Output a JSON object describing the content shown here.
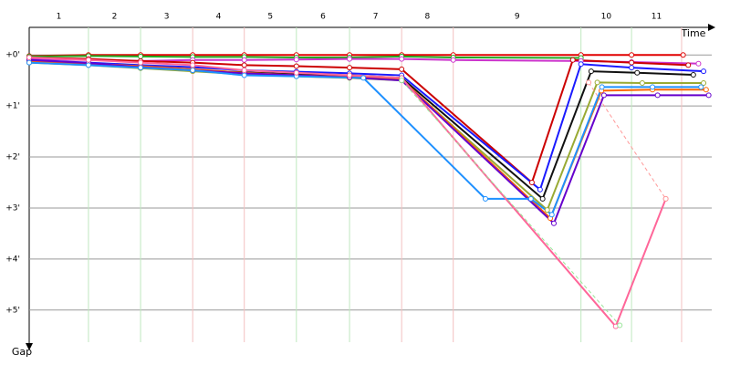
{
  "chart_data": {
    "type": "line",
    "x_label": "Time",
    "y_label": "Gap",
    "laps": [
      "1",
      "2",
      "3",
      "4",
      "5",
      "6",
      "7",
      "8",
      "9",
      "10",
      "11"
    ],
    "lap_ends": [
      1.16,
      2.18,
      3.2,
      4.21,
      5.23,
      6.27,
      7.29,
      8.3,
      10.8,
      11.79,
      12.77
    ],
    "xlim": [
      0,
      13.36
    ],
    "ylim": [
      -0.54,
      5.63
    ],
    "yticks": [
      {
        "value": 0,
        "label": "+0'"
      },
      {
        "value": 1,
        "label": "+1'"
      },
      {
        "value": 2,
        "label": "+2'"
      },
      {
        "value": 3,
        "label": "+3'"
      },
      {
        "value": 4,
        "label": "+4'"
      },
      {
        "value": 5,
        "label": "+5'"
      }
    ],
    "grid": true,
    "series": [
      {
        "color": "#e00000",
        "x": [
          0,
          1.16,
          2.18,
          3.2,
          4.21,
          5.23,
          6.27,
          7.29,
          8.3,
          10.8,
          11.79,
          12.8
        ],
        "values": [
          0.02,
          0,
          0,
          0,
          0,
          0,
          0,
          0,
          0,
          0,
          0,
          0
        ]
      },
      {
        "color": "#22aa22",
        "x": [
          0,
          1.16,
          2.18,
          3.2,
          4.21,
          5.23,
          6.27,
          7.29,
          8.3,
          10.8
        ],
        "values": [
          0.03,
          0.02,
          0.03,
          0.04,
          0.04,
          0.05,
          0.05,
          0.03,
          0.05,
          0.06
        ]
      },
      {
        "color": "#cc33cc",
        "x": [
          0,
          1.16,
          2.18,
          3.2,
          4.21,
          5.23,
          6.27,
          7.29,
          8.3,
          10.8,
          11.79,
          13.1
        ],
        "values": [
          0.08,
          0.1,
          0.12,
          0.1,
          0.1,
          0.09,
          0.08,
          0.08,
          0.1,
          0.12,
          0.14,
          0.17
        ]
      },
      {
        "color": "#cc0000",
        "x": [
          0,
          1.16,
          2.18,
          3.2,
          4.21,
          5.23,
          6.27,
          7.29,
          9.84,
          10.64,
          11.79,
          12.9
        ],
        "values": [
          0.05,
          0.08,
          0.12,
          0.15,
          0.2,
          0.22,
          0.25,
          0.28,
          2.5,
          0.1,
          0.15,
          0.2
        ]
      },
      {
        "color": "#1a1aff",
        "x": [
          0,
          1.16,
          2.18,
          3.2,
          4.21,
          5.23,
          6.27,
          7.29,
          10.0,
          10.8,
          11.79,
          13.2
        ],
        "values": [
          0.1,
          0.15,
          0.2,
          0.24,
          0.3,
          0.33,
          0.36,
          0.4,
          2.64,
          0.18,
          0.25,
          0.32
        ]
      },
      {
        "color": "#111111",
        "x": [
          0,
          1.16,
          2.18,
          3.2,
          4.21,
          5.23,
          6.27,
          7.29,
          10.05,
          11.0,
          11.9,
          13.0
        ],
        "values": [
          0.12,
          0.18,
          0.23,
          0.3,
          0.34,
          0.38,
          0.4,
          0.45,
          2.82,
          0.32,
          0.35,
          0.39
        ]
      },
      {
        "color": "#99aa33",
        "x": [
          0,
          1.16,
          2.18,
          3.2,
          4.21,
          5.23,
          6.27,
          7.29,
          10.14,
          11.12,
          12.0,
          13.2
        ],
        "values": [
          0.15,
          0.2,
          0.26,
          0.32,
          0.38,
          0.42,
          0.45,
          0.5,
          3.04,
          0.54,
          0.55,
          0.55
        ]
      },
      {
        "color": "#ff6600",
        "x": [
          0,
          1.16,
          2.18,
          3.2,
          4.21,
          5.23,
          6.27,
          7.29,
          10.2,
          11.2,
          12.2,
          13.25
        ],
        "values": [
          0.13,
          0.17,
          0.22,
          0.28,
          0.35,
          0.4,
          0.43,
          0.48,
          3.2,
          0.7,
          0.68,
          0.68
        ]
      },
      {
        "color": "#6600cc",
        "x": [
          0,
          1.16,
          2.18,
          3.2,
          4.21,
          5.23,
          6.27,
          7.29,
          10.27,
          11.25,
          12.3,
          13.3
        ],
        "values": [
          0.1,
          0.16,
          0.24,
          0.3,
          0.36,
          0.4,
          0.44,
          0.5,
          3.3,
          0.79,
          0.79,
          0.79
        ]
      },
      {
        "color": "#1e90ff",
        "x": [
          0,
          1.16,
          2.18,
          3.2,
          4.21,
          5.23,
          6.54,
          8.93,
          9.82,
          10.23,
          11.21,
          12.2,
          13.15
        ],
        "values": [
          0.15,
          0.2,
          0.25,
          0.3,
          0.4,
          0.42,
          0.45,
          2.82,
          2.82,
          3.13,
          0.63,
          0.63,
          0.63
        ]
      },
      {
        "color": "#ff6699",
        "x": [
          0,
          1.16,
          2.18,
          3.2,
          4.21,
          5.23,
          6.27,
          7.29,
          11.48,
          12.46
        ],
        "values": [
          0.05,
          0.1,
          0.15,
          0.2,
          0.3,
          0.35,
          0.4,
          0.45,
          5.32,
          2.82
        ]
      },
      {
        "color": "#99e699",
        "dash": true,
        "x": [
          7.29,
          11.56
        ],
        "values": [
          0.5,
          5.3
        ]
      },
      {
        "color": "#ff9999",
        "dash": true,
        "x": [
          10.95,
          12.46
        ],
        "values": [
          0.54,
          2.82
        ]
      }
    ]
  }
}
